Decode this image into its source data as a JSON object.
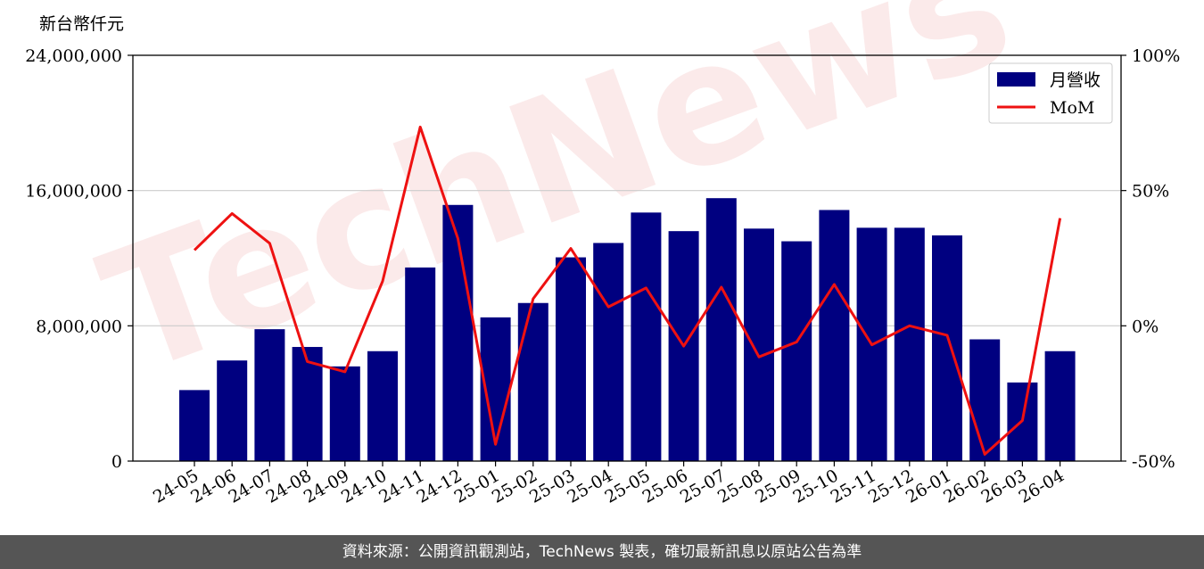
{
  "chart_data": {
    "type": "bar",
    "y_unit": "新台幣仟元",
    "categories": [
      "24-05",
      "24-06",
      "24-07",
      "24-08",
      "24-09",
      "24-10",
      "24-11",
      "24-12",
      "25-01",
      "25-02",
      "25-03",
      "25-04",
      "25-05",
      "25-06",
      "25-07",
      "25-08",
      "25-09",
      "25-10",
      "25-11",
      "25-12",
      "26-01",
      "26-02",
      "26-03",
      "26-04"
    ],
    "series": [
      {
        "name": "月營收",
        "axis": "left",
        "type": "bar",
        "color": "#000080",
        "values": [
          4200000,
          5950000,
          7800000,
          6750000,
          5600000,
          6500000,
          11450000,
          15150000,
          8500000,
          9350000,
          12050000,
          12900000,
          14700000,
          13600000,
          15550000,
          13750000,
          13000000,
          14850000,
          13800000,
          13800000,
          13350000,
          7200000,
          4650000,
          6500000
        ]
      },
      {
        "name": "MoM",
        "axis": "right",
        "type": "line",
        "color": "#ee1111",
        "values": [
          28,
          41.5,
          30.5,
          -13.2,
          -17,
          16.5,
          73.5,
          32.3,
          -43.8,
          10,
          28.6,
          7,
          14,
          -7.5,
          14.3,
          -11.5,
          -6,
          15.3,
          -7,
          0,
          -3.5,
          -47.5,
          -35,
          39.8
        ]
      }
    ],
    "yticks_left": [
      "0",
      "8,000,000",
      "16,000,000",
      "24,000,000"
    ],
    "yticks_right": [
      "-50%",
      "0%",
      "50%",
      "100%"
    ],
    "ylim_left": [
      0,
      24000000
    ],
    "ylim_right": [
      -50,
      100
    ],
    "grid": "horizontal",
    "legend_position": "top-right"
  },
  "watermark": "TechNews",
  "footer": {
    "text": "資料來源：公開資訊觀測站，TechNews 製表，確切最新訊息以原站公告為準"
  }
}
